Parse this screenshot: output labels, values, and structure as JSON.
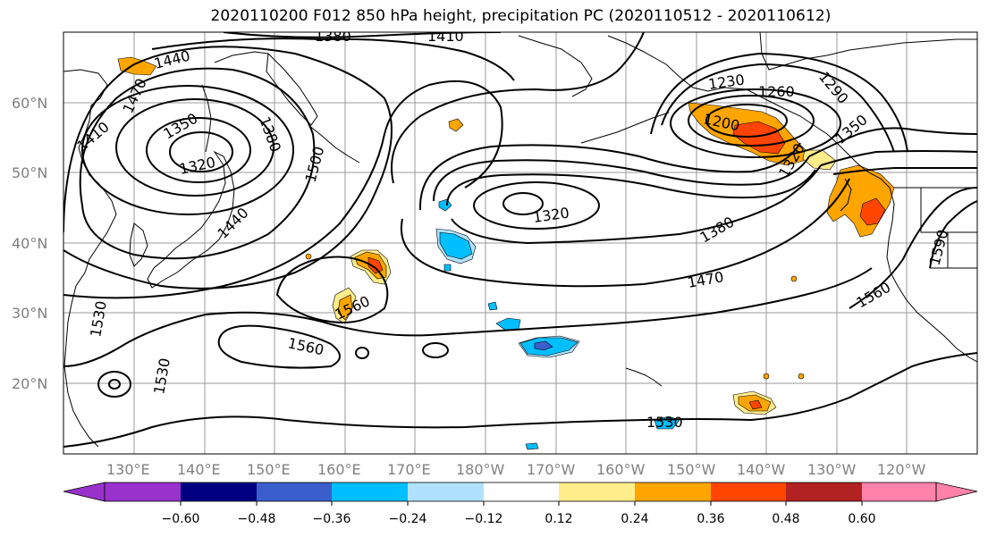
{
  "title": "2020110200 F012 850 hPa height, precipitation PC (2020110512 - 2020110612)",
  "lat_labels": [
    "60°N",
    "50°N",
    "40°N",
    "30°N",
    "20°N"
  ],
  "lon_labels": [
    "130°E",
    "140°E",
    "150°E",
    "160°E",
    "170°E",
    "180°W",
    "170°W",
    "160°W",
    "150°W",
    "140°W",
    "130°W",
    "120°W"
  ],
  "contour_labels": [
    "1380",
    "1410",
    "1440",
    "1470",
    "1410",
    "1350",
    "1380",
    "1320",
    "1500",
    "1440",
    "1230",
    "1260",
    "1290",
    "1200",
    "1350",
    "1320",
    "1320",
    "1380",
    "1470",
    "1590",
    "1560",
    "1560",
    "1530",
    "1560",
    "1530",
    "1530"
  ],
  "colorbar": {
    "colors": [
      "#9932CC",
      "#000080",
      "#3A5FCD",
      "#00BFFF",
      "#B0E2FF",
      "#FFFFFF",
      "#FFEC8B",
      "#FFA500",
      "#FF4500",
      "#B22222",
      "#FF82AB"
    ],
    "tick_labels": [
      "−0.60",
      "−0.48",
      "−0.36",
      "−0.24",
      "−0.12",
      "0.12",
      "0.24",
      "0.36",
      "0.48",
      "0.60"
    ]
  }
}
